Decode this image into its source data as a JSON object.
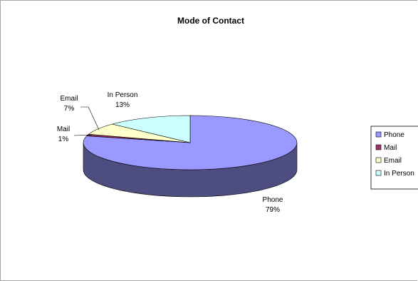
{
  "chart_data": {
    "type": "pie",
    "title": "Mode of Contact",
    "style": "3d",
    "series": [
      {
        "name": "Phone",
        "value": 79,
        "label": "79%",
        "color": "#9999ff"
      },
      {
        "name": "Mail",
        "value": 1,
        "label": "1%",
        "color": "#993366"
      },
      {
        "name": "Email",
        "value": 7,
        "label": "7%",
        "color": "#ffffcc"
      },
      {
        "name": "In Person",
        "value": 13,
        "label": "13%",
        "color": "#ccffff"
      }
    ],
    "legend": {
      "position": "right"
    }
  }
}
